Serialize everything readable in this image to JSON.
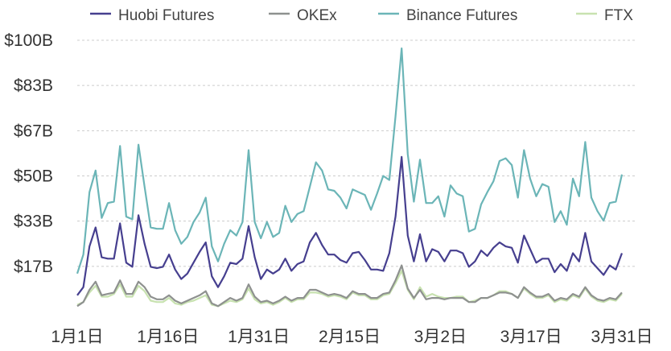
{
  "chart_data": {
    "type": "line",
    "title": "",
    "xlabel": "",
    "ylabel": "",
    "ylim": [
      0,
      100
    ],
    "grid": "horizontal dashed",
    "legend_position": "top",
    "x_tick_labels": [
      "1月1日",
      "1月16日",
      "1月31日",
      "2月15日",
      "3月2日",
      "3月17日",
      "3月31日"
    ],
    "y_tick_labels": [
      "$17B",
      "$33B",
      "$50B",
      "$67B",
      "$83B",
      "$100B"
    ],
    "y_tick_values": [
      16.67,
      33.33,
      50,
      66.67,
      83.33,
      100
    ],
    "y_unit": "USD billions",
    "x_count": 90,
    "series": [
      {
        "name": "Huobi Futures",
        "color": "#463f8f",
        "values": [
          6,
          9,
          24,
          31,
          20,
          19.5,
          19.5,
          32.5,
          18,
          16.5,
          35.5,
          25,
          16.5,
          16,
          16.5,
          21,
          15.5,
          12,
          14,
          18,
          22,
          25.5,
          13,
          9,
          13,
          18,
          17.5,
          19.5,
          31.5,
          20,
          12,
          15.5,
          14,
          15.5,
          19.5,
          15,
          17.5,
          18.5,
          25.5,
          29,
          24.5,
          21,
          21,
          19,
          18,
          21.5,
          22,
          19,
          15.5,
          15.5,
          15,
          21.5,
          35,
          57,
          28,
          18.5,
          28.5,
          18.5,
          23,
          22,
          18.5,
          22.5,
          22.5,
          21.5,
          16.5,
          18.5,
          22.5,
          20.5,
          23.5,
          25.5,
          24,
          23.5,
          18,
          28,
          23,
          18,
          19.5,
          19.5,
          14.5,
          17.5,
          15,
          21.5,
          18.5,
          29,
          18.5,
          16,
          13.5,
          17,
          15.5,
          21.5
        ]
      },
      {
        "name": "OKEx",
        "color": "#8e918f",
        "values": [
          2,
          3.5,
          8,
          11,
          6,
          6.5,
          7,
          11.5,
          6.5,
          6.5,
          11,
          9,
          5.5,
          4.5,
          4.5,
          6,
          4,
          3,
          4,
          5,
          6,
          7.5,
          3,
          2,
          3.5,
          5,
          4,
          5,
          10,
          5.5,
          3.5,
          4,
          3,
          4,
          5.5,
          4,
          5,
          5,
          8,
          8,
          7,
          6,
          6.5,
          6,
          5,
          7.5,
          6.5,
          6.5,
          5,
          5,
          6.5,
          7,
          11.5,
          17,
          8.5,
          5,
          8,
          4.5,
          5,
          5,
          4.5,
          5,
          5,
          5,
          3.5,
          3.5,
          5,
          5,
          6,
          7,
          7,
          6.5,
          5,
          9,
          7,
          5.5,
          5.5,
          6.5,
          4,
          5,
          4.5,
          6.5,
          5.5,
          9,
          6,
          4.5,
          4,
          5,
          4.5,
          7
        ]
      },
      {
        "name": "Binance Futures",
        "color": "#6bb5b7",
        "values": [
          14,
          21,
          44,
          52,
          34.5,
          40,
          40.5,
          61,
          35,
          34,
          61.5,
          46,
          31,
          30.5,
          30.5,
          40,
          30,
          25,
          27.5,
          33,
          36.5,
          42,
          24,
          18.5,
          25,
          30,
          28,
          33,
          59.5,
          33,
          27,
          33,
          27.5,
          29,
          39,
          33,
          36,
          37,
          46,
          55,
          52,
          45,
          44.5,
          42,
          38,
          45,
          44,
          43,
          37.5,
          43.5,
          50,
          48.5,
          72,
          97,
          58,
          40.5,
          56,
          40,
          40,
          42.5,
          35,
          46.5,
          43.5,
          42.5,
          29.5,
          30.5,
          39.5,
          44,
          48,
          55.5,
          56.5,
          54,
          42,
          59.5,
          49,
          42.5,
          47,
          46,
          33,
          37,
          32,
          49,
          42.5,
          62.5,
          42,
          37,
          33.5,
          40,
          40.5,
          50.5
        ]
      },
      {
        "name": "FTX",
        "color": "#c8e2b0",
        "values": [
          2.5,
          3.5,
          7,
          9.5,
          5.5,
          5.5,
          6.5,
          10,
          5.5,
          5.5,
          9.5,
          7.5,
          4,
          3.5,
          3.5,
          5,
          3,
          2.5,
          3.5,
          4,
          5,
          6,
          2.5,
          2,
          3,
          4,
          3.5,
          4.5,
          8.5,
          4.5,
          3,
          3.5,
          2.5,
          3.5,
          5,
          3.5,
          4.5,
          4.5,
          7,
          7,
          6.5,
          5.5,
          6,
          5.5,
          4.5,
          7,
          6,
          6,
          4.5,
          4.5,
          6,
          6.5,
          10.5,
          15,
          8,
          4.5,
          9,
          5.5,
          6.5,
          5.5,
          5,
          5,
          5.5,
          5.5,
          3.5,
          4,
          5,
          5,
          6,
          7.5,
          7.5,
          6.5,
          5,
          8.5,
          6.5,
          5,
          5,
          6,
          3.5,
          4.5,
          4,
          6,
          5,
          8.5,
          5.5,
          4,
          3.5,
          4.5,
          4,
          6.5
        ]
      }
    ]
  }
}
